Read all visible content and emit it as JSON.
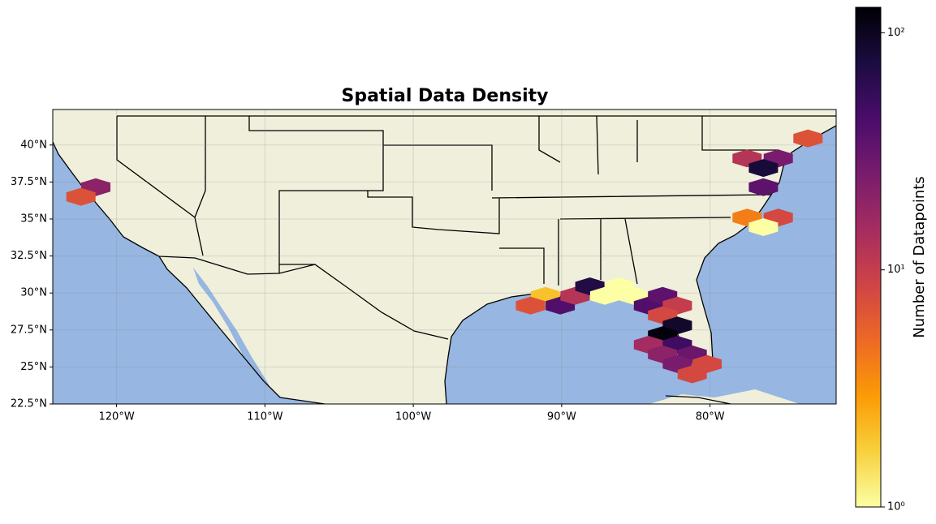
{
  "chart_data": {
    "type": "hexbin",
    "title": "Spatial Data Density",
    "xlim": [
      -124.3,
      -71.5
    ],
    "ylim": [
      22.5,
      42.4
    ],
    "xticks": [
      {
        "value": -120,
        "label": "120°W"
      },
      {
        "value": -110,
        "label": "110°W"
      },
      {
        "value": -100,
        "label": "100°W"
      },
      {
        "value": -90,
        "label": "90°W"
      },
      {
        "value": -80,
        "label": "80°W"
      }
    ],
    "yticks": [
      {
        "value": 22.5,
        "label": "22.5°N"
      },
      {
        "value": 25,
        "label": "25°N"
      },
      {
        "value": 27.5,
        "label": "27.5°N"
      },
      {
        "value": 30,
        "label": "30°N"
      },
      {
        "value": 32.5,
        "label": "32.5°N"
      },
      {
        "value": 35,
        "label": "35°N"
      },
      {
        "value": 37.5,
        "label": "37.5°N"
      },
      {
        "value": 40,
        "label": "40°N"
      }
    ],
    "grid": true,
    "ocean_color": "#97b6e1",
    "land_color": "#efefdb",
    "colorbar": {
      "label": "Number of Datapoints",
      "log": true,
      "clim": [
        1,
        128
      ],
      "ticks": [
        {
          "value": 1,
          "label": "10⁰"
        },
        {
          "value": 10,
          "label": "10¹"
        },
        {
          "value": 100,
          "label": "10²"
        }
      ],
      "colormap": [
        "#fcffa4",
        "#f7d13d",
        "#fb9b06",
        "#ed6925",
        "#cf4446",
        "#a52c60",
        "#781c6d",
        "#4a0c6b",
        "#1b0c41",
        "#000004"
      ]
    },
    "cells": [
      {
        "lon": -121.4,
        "lat": 37.15,
        "count": 20
      },
      {
        "lon": -122.4,
        "lat": 36.5,
        "count": 7
      },
      {
        "lon": -73.4,
        "lat": 40.45,
        "count": 7
      },
      {
        "lon": -77.5,
        "lat": 39.1,
        "count": 12
      },
      {
        "lon": -75.4,
        "lat": 39.1,
        "count": 25
      },
      {
        "lon": -76.4,
        "lat": 38.45,
        "count": 80
      },
      {
        "lon": -76.4,
        "lat": 37.15,
        "count": 35
      },
      {
        "lon": -77.5,
        "lat": 35.1,
        "count": 4
      },
      {
        "lon": -75.4,
        "lat": 35.1,
        "count": 8
      },
      {
        "lon": -76.4,
        "lat": 34.45,
        "count": 1
      },
      {
        "lon": -91.1,
        "lat": 29.8,
        "count": 2
      },
      {
        "lon": -92.1,
        "lat": 29.15,
        "count": 7
      },
      {
        "lon": -90.1,
        "lat": 29.15,
        "count": 40
      },
      {
        "lon": -89.1,
        "lat": 29.8,
        "count": 12
      },
      {
        "lon": -88.1,
        "lat": 30.45,
        "count": 70
      },
      {
        "lon": -87.1,
        "lat": 29.8,
        "count": 1
      },
      {
        "lon": -86.1,
        "lat": 30.45,
        "count": 1
      },
      {
        "lon": -85.15,
        "lat": 29.8,
        "count": 1
      },
      {
        "lon": -84.15,
        "lat": 29.15,
        "count": 40
      },
      {
        "lon": -83.2,
        "lat": 29.8,
        "count": 35
      },
      {
        "lon": -82.2,
        "lat": 29.15,
        "count": 10
      },
      {
        "lon": -83.2,
        "lat": 28.5,
        "count": 8
      },
      {
        "lon": -82.2,
        "lat": 27.8,
        "count": 90
      },
      {
        "lon": -83.2,
        "lat": 27.15,
        "count": 120
      },
      {
        "lon": -84.15,
        "lat": 26.5,
        "count": 15
      },
      {
        "lon": -82.2,
        "lat": 26.5,
        "count": 50
      },
      {
        "lon": -83.2,
        "lat": 25.85,
        "count": 20
      },
      {
        "lon": -81.2,
        "lat": 25.85,
        "count": 30
      },
      {
        "lon": -82.2,
        "lat": 25.2,
        "count": 25
      },
      {
        "lon": -80.2,
        "lat": 25.2,
        "count": 8
      },
      {
        "lon": -81.2,
        "lat": 24.5,
        "count": 8
      }
    ]
  }
}
